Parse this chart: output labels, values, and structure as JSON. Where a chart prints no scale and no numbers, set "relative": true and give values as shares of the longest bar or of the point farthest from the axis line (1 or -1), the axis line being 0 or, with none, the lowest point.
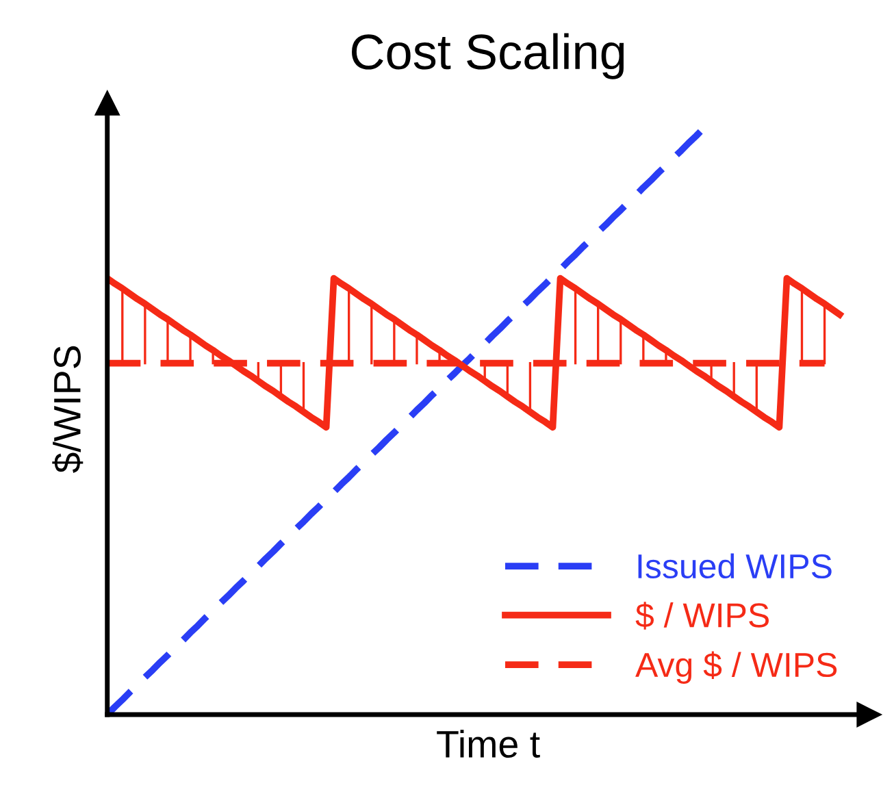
{
  "chart_data": {
    "type": "line",
    "title": "Cost Scaling",
    "xlabel": "Time t",
    "ylabel": "$/WIPS",
    "relative": true,
    "tick_labels": false,
    "legend": "bottom right",
    "marker": "none",
    "categories": [
      null,
      null,
      null,
      null,
      null,
      null,
      null,
      null,
      null,
      null,
      null,
      null,
      null,
      null,
      null,
      null,
      null,
      null,
      null,
      null,
      null,
      null,
      null,
      null,
      null,
      null,
      null,
      null,
      null,
      null,
      null,
      null,
      null,
      null,
      null,
      null,
      null,
      null,
      null,
      null,
      null,
      null,
      null,
      null,
      null,
      null,
      null,
      null,
      null,
      null,
      null,
      null,
      null,
      null,
      null,
      null,
      null,
      null,
      null,
      null,
      null,
      null,
      null,
      null,
      null,
      null,
      null,
      null,
      null,
      null,
      null,
      null,
      null,
      null,
      null,
      null,
      null,
      null,
      null,
      null,
      null,
      null,
      null,
      null,
      null,
      null,
      null,
      null,
      null,
      null,
      null,
      null,
      null,
      null,
      null,
      null,
      null,
      null
    ],
    "series": [
      {
        "name": "Issued WIPS",
        "color": "#2a3ef5",
        "line_style": "dashed",
        "values": [
          0,
          0.013,
          0.025,
          0.038,
          0.05,
          0.063,
          0.075,
          0.088,
          0.1,
          0.113,
          0.125,
          0.138,
          0.15,
          0.163,
          0.175,
          0.188,
          0.2,
          0.213,
          0.225,
          0.238,
          0.25,
          0.263,
          0.275,
          0.288,
          0.3,
          0.313,
          0.325,
          0.338,
          0.35,
          0.363,
          0.375,
          0.388,
          0.4,
          0.413,
          0.425,
          0.438,
          0.45,
          0.463,
          0.475,
          0.488,
          0.5,
          0.513,
          0.525,
          0.538,
          0.55,
          0.563,
          0.575,
          0.588,
          0.6,
          0.613,
          0.625,
          0.638,
          0.65,
          0.663,
          0.675,
          0.688,
          0.7,
          0.713,
          0.725,
          0.738,
          0.75,
          0.763,
          0.775,
          0.788,
          0.8,
          0.813,
          0.825,
          0.838,
          0.85,
          0.863,
          0.875,
          0.888,
          0.9,
          0.913,
          0.925,
          0.938,
          0.95,
          0.963,
          0.975,
          0.988,
          1,
          null,
          null,
          null,
          null,
          null,
          null,
          null,
          null,
          null,
          null,
          null,
          null,
          null,
          null,
          null,
          null,
          null
        ]
      },
      {
        "name": "$ / WIPS",
        "color": "#f52a16",
        "line_style": "solid",
        "values": [
          0.735,
          0.726,
          0.718,
          0.709,
          0.7,
          0.692,
          0.683,
          0.674,
          0.666,
          0.657,
          0.648,
          0.64,
          0.631,
          0.622,
          0.614,
          0.605,
          0.597,
          0.588,
          0.579,
          0.571,
          0.562,
          0.553,
          0.545,
          0.536,
          0.527,
          0.519,
          0.51,
          0.501,
          0.493,
          0.484,
          0.735,
          0.726,
          0.718,
          0.709,
          0.7,
          0.692,
          0.683,
          0.674,
          0.666,
          0.657,
          0.648,
          0.64,
          0.631,
          0.622,
          0.614,
          0.605,
          0.597,
          0.588,
          0.579,
          0.571,
          0.562,
          0.553,
          0.545,
          0.536,
          0.527,
          0.519,
          0.51,
          0.501,
          0.493,
          0.484,
          0.735,
          0.726,
          0.718,
          0.709,
          0.7,
          0.692,
          0.683,
          0.674,
          0.666,
          0.657,
          0.648,
          0.64,
          0.631,
          0.622,
          0.614,
          0.605,
          0.597,
          0.588,
          0.579,
          0.571,
          0.562,
          0.553,
          0.545,
          0.536,
          0.527,
          0.519,
          0.51,
          0.501,
          0.493,
          0.484,
          0.735,
          0.726,
          0.718,
          0.709,
          0.7,
          0.692,
          0.683,
          0.674
        ]
      },
      {
        "name": "Avg $ / WIPS",
        "color": "#f52a16",
        "line_style": "dashed",
        "values": [
          0.592,
          0.592,
          0.592,
          0.592,
          0.592,
          0.592,
          0.592,
          0.592,
          0.592,
          0.592,
          0.592,
          0.592,
          0.592,
          0.592,
          0.592,
          0.592,
          0.592,
          0.592,
          0.592,
          0.592,
          0.592,
          0.592,
          0.592,
          0.592,
          0.592,
          0.592,
          0.592,
          0.592,
          0.592,
          0.592,
          0.592,
          0.592,
          0.592,
          0.592,
          0.592,
          0.592,
          0.592,
          0.592,
          0.592,
          0.592,
          0.592,
          0.592,
          0.592,
          0.592,
          0.592,
          0.592,
          0.592,
          0.592,
          0.592,
          0.592,
          0.592,
          0.592,
          0.592,
          0.592,
          0.592,
          0.592,
          0.592,
          0.592,
          0.592,
          0.592,
          0.592,
          0.592,
          0.592,
          0.592,
          0.592,
          0.592,
          0.592,
          0.592,
          0.592,
          0.592,
          0.592,
          0.592,
          0.592,
          0.592,
          0.592,
          0.592,
          0.592,
          0.592,
          0.592,
          0.592,
          0.592,
          0.592,
          0.592,
          0.592,
          0.592,
          0.592,
          0.592,
          0.592,
          0.592,
          0.592,
          0.592,
          0.592,
          0.592,
          0.592,
          0.592,
          0.592,
          null,
          null
        ]
      }
    ]
  }
}
